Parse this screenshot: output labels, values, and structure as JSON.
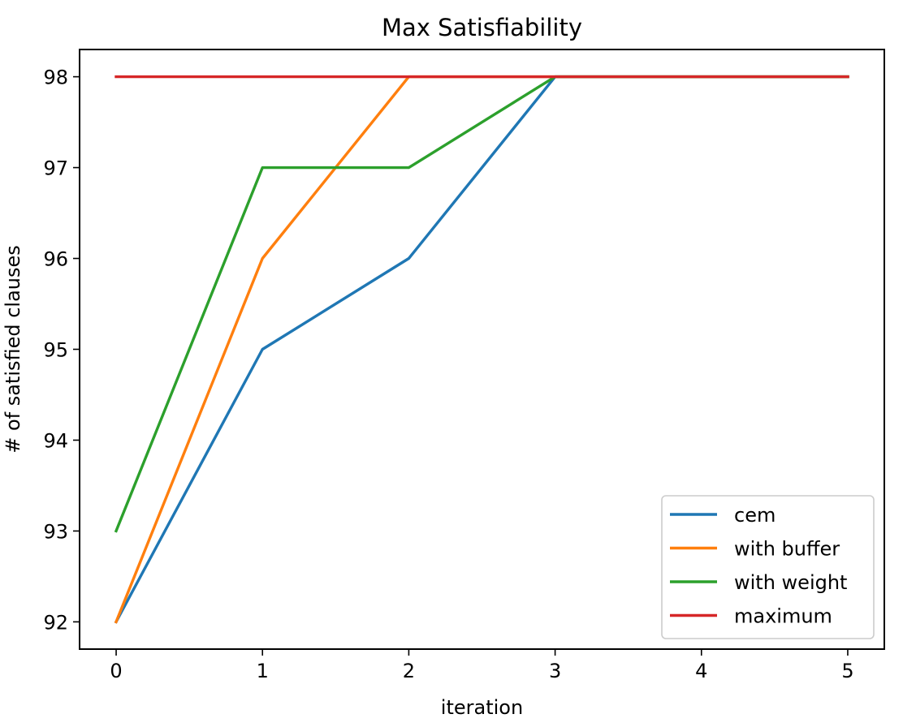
{
  "chart_data": {
    "type": "line",
    "title": "Max Satisfiability",
    "xlabel": "iteration",
    "ylabel": "# of satisfied clauses",
    "x": [
      0,
      1,
      2,
      3,
      4,
      5
    ],
    "xlim": [
      -0.25,
      5.25
    ],
    "ylim": [
      91.7,
      98.3
    ],
    "xticks": [
      0,
      1,
      2,
      3,
      4,
      5
    ],
    "yticks": [
      92,
      93,
      94,
      95,
      96,
      97,
      98
    ],
    "grid": false,
    "legend_position": "lower-right",
    "series": [
      {
        "name": "cem",
        "color": "#1f77b4",
        "values": [
          92,
          95,
          96,
          98,
          98,
          98
        ]
      },
      {
        "name": "with buffer",
        "color": "#ff7f0e",
        "values": [
          92,
          96,
          98,
          98,
          98,
          98
        ]
      },
      {
        "name": "with weight",
        "color": "#2ca02c",
        "values": [
          93,
          97,
          97,
          98,
          98,
          98
        ]
      },
      {
        "name": "maximum",
        "color": "#d62728",
        "values": [
          98,
          98,
          98,
          98,
          98,
          98
        ]
      }
    ]
  }
}
